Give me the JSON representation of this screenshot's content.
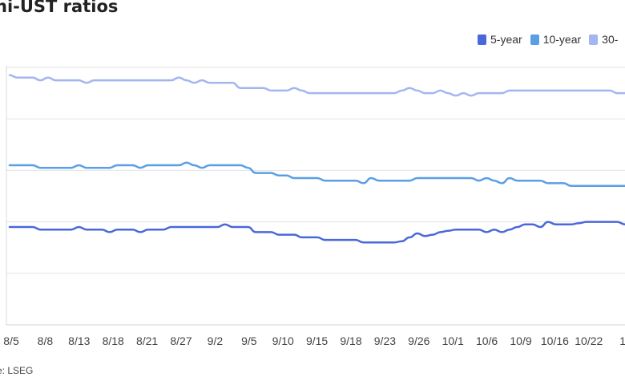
{
  "title": "ni-UST ratios",
  "source": "e: LSEG",
  "legend": [
    {
      "label": "5-year",
      "color": "#4a68d9"
    },
    {
      "label": "10-year",
      "color": "#5a9fe6"
    },
    {
      "label": "30-",
      "color": "#a3b6ef"
    }
  ],
  "chart_data": {
    "type": "line",
    "title": "ni-UST ratios",
    "xlabel": "",
    "ylabel": "",
    "ylim": [
      0,
      100
    ],
    "grid": true,
    "legend_position": "top-right",
    "x_ticks": [
      "8/5",
      "8/8",
      "8/13",
      "8/18",
      "8/21",
      "8/27",
      "9/2",
      "9/5",
      "9/10",
      "9/15",
      "9/18",
      "9/23",
      "9/26",
      "10/1",
      "10/6",
      "10/9",
      "10/16",
      "10/22",
      "1"
    ],
    "series": [
      {
        "name": "5-year",
        "color": "#4a68d9",
        "values": [
          38,
          38,
          38,
          38,
          37,
          37,
          37,
          37,
          37,
          38,
          37,
          37,
          37,
          36,
          37,
          37,
          37,
          36,
          37,
          37,
          37,
          38,
          38,
          38,
          38,
          38,
          38,
          38,
          39,
          38,
          38,
          38,
          36,
          36,
          36,
          35,
          35,
          35,
          34,
          34,
          34,
          33,
          33,
          33,
          33,
          33,
          32,
          32,
          32,
          32,
          32,
          32.5,
          34,
          35.5,
          34.5,
          35,
          36,
          36.5,
          37,
          37,
          37,
          37,
          36,
          37,
          36,
          37,
          38,
          39,
          39,
          38,
          40,
          39,
          39,
          39,
          39.5,
          40,
          40,
          40,
          40,
          40,
          39
        ]
      },
      {
        "name": "10-year",
        "color": "#5a9fe6",
        "values": [
          62,
          62,
          62,
          62,
          61,
          61,
          61,
          61,
          61,
          62,
          61,
          61,
          61,
          61,
          62,
          62,
          62,
          61,
          62,
          62,
          62,
          62,
          62,
          63,
          62,
          61,
          62,
          62,
          62,
          62,
          62,
          61,
          59,
          59,
          59,
          58,
          58,
          57,
          57,
          57,
          57,
          56,
          56,
          56,
          56,
          56,
          55,
          57,
          56,
          56,
          56,
          56,
          56,
          57,
          57,
          57,
          57,
          57,
          57,
          57,
          57,
          56,
          57,
          56,
          55,
          57,
          56,
          56,
          56,
          56,
          55,
          55,
          55,
          54,
          54,
          54,
          54,
          54,
          54,
          54,
          54
        ]
      },
      {
        "name": "30-",
        "color": "#a3b6ef",
        "values": [
          97,
          96,
          96,
          96,
          95,
          96,
          95,
          95,
          95,
          95,
          94,
          95,
          95,
          95,
          95,
          95,
          95,
          95,
          95,
          95,
          95,
          95,
          96,
          95,
          94,
          95,
          94,
          94,
          94,
          94,
          92,
          92,
          92,
          92,
          91,
          91,
          91,
          92,
          91,
          90,
          90,
          90,
          90,
          90,
          90,
          90,
          90,
          90,
          90,
          90,
          90,
          91,
          92,
          91,
          90,
          90,
          91,
          90,
          89,
          90,
          89,
          90,
          90,
          90,
          90,
          91,
          91,
          91,
          91,
          91,
          91,
          91,
          91,
          91,
          91,
          91,
          91,
          91,
          91,
          90,
          90
        ]
      }
    ]
  }
}
